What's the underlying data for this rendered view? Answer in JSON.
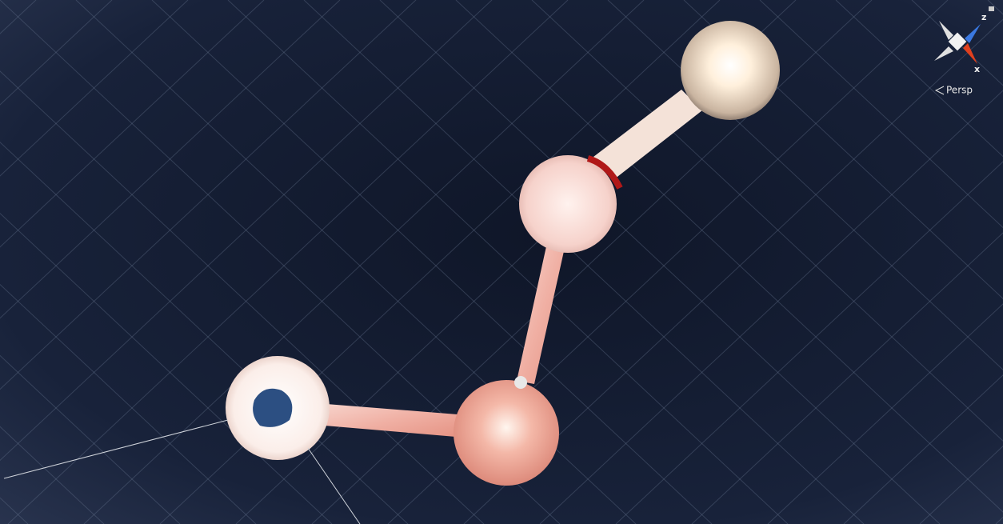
{
  "gizmo": {
    "z_label": "z",
    "x_label": "x"
  },
  "projection": "Persp"
}
